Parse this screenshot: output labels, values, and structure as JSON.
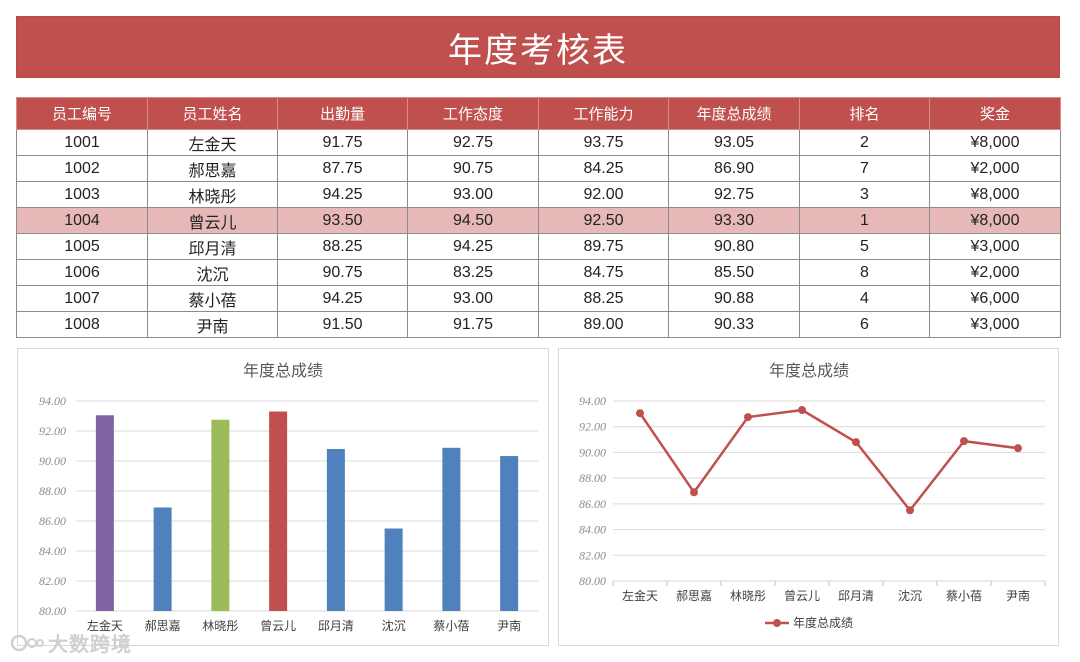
{
  "title": "年度考核表",
  "table": {
    "headers": [
      "员工编号",
      "员工姓名",
      "出勤量",
      "工作态度",
      "工作能力",
      "年度总成绩",
      "排名",
      "奖金"
    ],
    "highlight_row": 3,
    "rows": [
      [
        "1001",
        "左金天",
        "91.75",
        "92.75",
        "93.75",
        "93.05",
        "2",
        "¥8,000"
      ],
      [
        "1002",
        "郝思嘉",
        "87.75",
        "90.75",
        "84.25",
        "86.90",
        "7",
        "¥2,000"
      ],
      [
        "1003",
        "林晓彤",
        "94.25",
        "93.00",
        "92.00",
        "92.75",
        "3",
        "¥8,000"
      ],
      [
        "1004",
        "曾云儿",
        "93.50",
        "94.50",
        "92.50",
        "93.30",
        "1",
        "¥8,000"
      ],
      [
        "1005",
        "邱月清",
        "88.25",
        "94.25",
        "89.75",
        "90.80",
        "5",
        "¥3,000"
      ],
      [
        "1006",
        "沈沉",
        "90.75",
        "83.25",
        "84.75",
        "85.50",
        "8",
        "¥2,000"
      ],
      [
        "1007",
        "蔡小蓓",
        "94.25",
        "93.00",
        "88.25",
        "90.88",
        "4",
        "¥6,000"
      ],
      [
        "1008",
        "尹南",
        "91.50",
        "91.75",
        "89.00",
        "90.33",
        "6",
        "¥3,000"
      ]
    ]
  },
  "chart_data": [
    {
      "type": "bar",
      "title": "年度总成绩",
      "categories": [
        "左金天",
        "郝思嘉",
        "林晓彤",
        "曾云儿",
        "邱月清",
        "沈沉",
        "蔡小蓓",
        "尹南"
      ],
      "values": [
        93.05,
        86.9,
        92.75,
        93.3,
        90.8,
        85.5,
        90.88,
        90.33
      ],
      "bar_colors": [
        "#8064a2",
        "#4f81bd",
        "#9bbb59",
        "#c0504d",
        "#4f81bd",
        "#4f81bd",
        "#4f81bd",
        "#4f81bd"
      ],
      "ylim": [
        80,
        94
      ],
      "yticks": [
        "94.00",
        "92.00",
        "90.00",
        "88.00",
        "86.00",
        "84.00",
        "82.00",
        "80.00"
      ],
      "grid": true
    },
    {
      "type": "line",
      "title": "年度总成绩",
      "categories": [
        "左金天",
        "郝思嘉",
        "林晓彤",
        "曾云儿",
        "邱月清",
        "沈沉",
        "蔡小蓓",
        "尹南"
      ],
      "series": [
        {
          "name": "年度总成绩",
          "values": [
            93.05,
            86.9,
            92.75,
            93.3,
            90.8,
            85.5,
            90.88,
            90.33
          ],
          "color": "#c0504d"
        }
      ],
      "ylim": [
        80,
        94
      ],
      "yticks": [
        "94.00",
        "92.00",
        "90.00",
        "88.00",
        "86.00",
        "84.00",
        "82.00",
        "80.00"
      ],
      "grid": true,
      "legend": "bottom"
    }
  ],
  "watermark": "大数跨境"
}
